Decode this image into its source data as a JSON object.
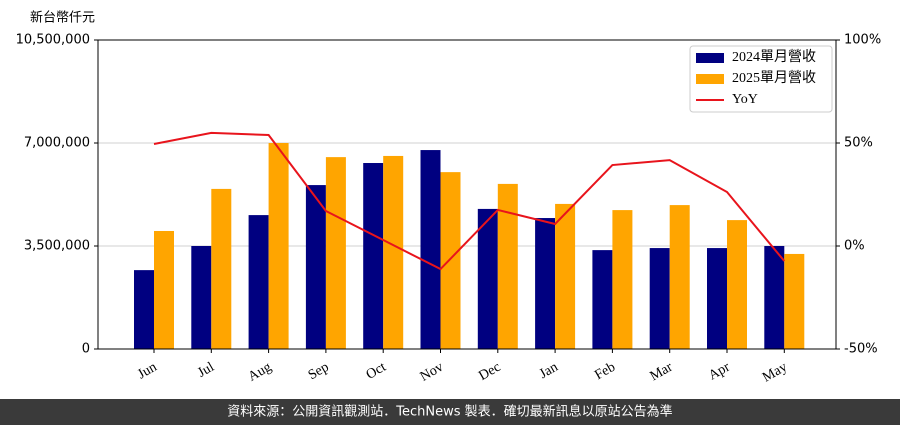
{
  "chart_data": {
    "type": "bar",
    "ylabel": "新台幣仟元",
    "categories": [
      "Jun",
      "Jul",
      "Aug",
      "Sep",
      "Oct",
      "Nov",
      "Dec",
      "Jan",
      "Feb",
      "Mar",
      "Apr",
      "May"
    ],
    "series": [
      {
        "name": "2024單月營收",
        "color": "#000080",
        "values": [
          2680000,
          3500000,
          4550000,
          5570000,
          6320000,
          6760000,
          4760000,
          4450000,
          3360000,
          3430000,
          3430000,
          3500000
        ]
      },
      {
        "name": "2025單月營收",
        "color": "#ffa500",
        "values": [
          4010000,
          5440000,
          7000000,
          6520000,
          6560000,
          6010000,
          5610000,
          4930000,
          4720000,
          4890000,
          4380000,
          3230000
        ]
      },
      {
        "name": "YoY",
        "color": "#e8141c",
        "type": "line",
        "axis": "y2",
        "values": [
          49.5,
          54.9,
          53.9,
          17,
          2.9,
          -11.2,
          17.5,
          10.7,
          39.3,
          41.7,
          26.2,
          -7.3
        ]
      }
    ],
    "ylim": [
      0,
      10500000
    ],
    "yticks": [
      0,
      {
        "value": 3500000,
        "label": "3,500,000"
      },
      {
        "value": 7000000,
        "label": "7,000,000"
      },
      {
        "value": 10500000,
        "label": "10,500,000"
      }
    ],
    "y2lim": [
      -50,
      100
    ],
    "y2ticks": [
      {
        "value": -50,
        "label": "-50%"
      },
      {
        "value": 0,
        "label": "0%"
      },
      {
        "value": 50,
        "label": "50%"
      },
      {
        "value": 100,
        "label": "100%"
      }
    ],
    "grid": true,
    "legend": "upper right",
    "footer": "資料來源：公開資訊觀測站．TechNews 製表．確切最新訊息以原站公告為準"
  }
}
